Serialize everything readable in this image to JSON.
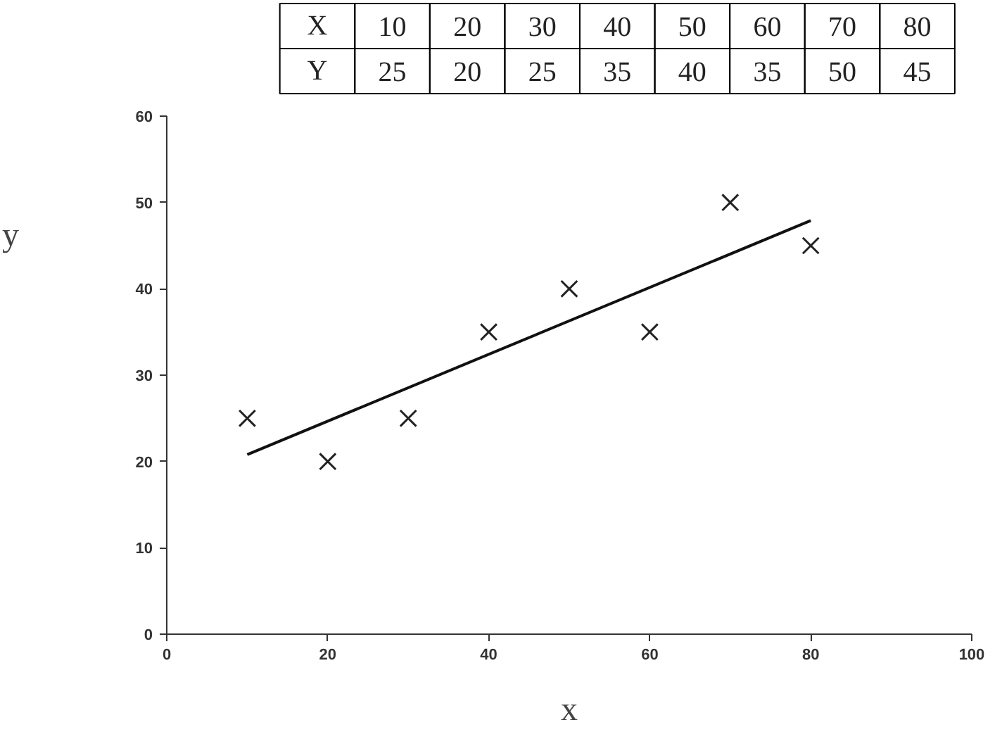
{
  "chart_data": {
    "type": "scatter",
    "xlabel": "x",
    "ylabel": "y",
    "x": [
      10,
      20,
      30,
      40,
      50,
      60,
      70,
      80
    ],
    "annotations": [
      "X",
      "10",
      "20",
      "30",
      "40",
      "50",
      "60",
      "70",
      "80",
      "Y",
      "25",
      "20",
      "25",
      "35",
      "40",
      "35",
      "50",
      "45"
    ],
    "series": [
      {
        "color": "#222222",
        "values": [
          25,
          20,
          25,
          35,
          40,
          35,
          50,
          45
        ],
        "marker": "cross"
      },
      {
        "type": "line",
        "color": "#111111",
        "x": [
          10,
          80
        ],
        "values": [
          20.8,
          47.9
        ],
        "marker": "none"
      }
    ],
    "xlim": [
      0,
      100
    ],
    "xticks": [
      0,
      20,
      40,
      60,
      80,
      100
    ],
    "ylim": [
      0,
      60
    ],
    "yticks": [
      0,
      10,
      20,
      30,
      40,
      50,
      60
    ],
    "grid": false
  }
}
